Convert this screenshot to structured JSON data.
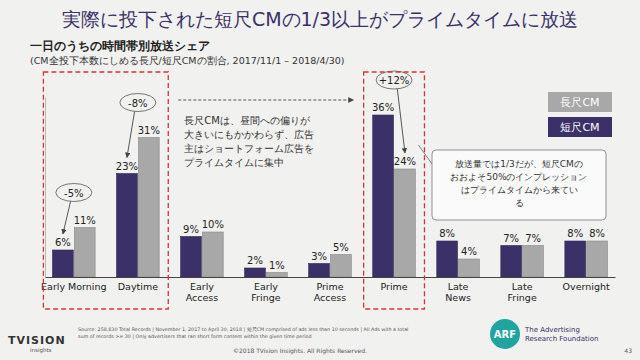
{
  "chart_data": {
    "type": "bar",
    "title": "実際に投下された短尺CMの1/3以上がプライムタイムに放送",
    "subtitle": "一日のうちの時間帯別放送シェア",
    "caption": "(CM全投下本数にしめる長尺/短尺CMの割合, 2017/11/1 – 2018/4/30)",
    "categories": [
      "Early Morning",
      "Daytime",
      "Early Access",
      "Early Fringe",
      "Prime Access",
      "Prime",
      "Late News",
      "Late Fringe",
      "Overnight"
    ],
    "series": [
      {
        "name": "短尺CM",
        "color": "#3b3168",
        "values": [
          6,
          23,
          9,
          2,
          3,
          36,
          8,
          7,
          8
        ],
        "value_labels": [
          "6%",
          "23%",
          "9%",
          "2%",
          "3%",
          "36%",
          "8%",
          "7%",
          "8%"
        ]
      },
      {
        "name": "長尺CM",
        "color": "#a8a8a8",
        "values": [
          11,
          31,
          10,
          1,
          5,
          24,
          4,
          7,
          8
        ],
        "value_labels": [
          "11%",
          "31%",
          "10%",
          "1%",
          "5%",
          "24%",
          "4%",
          "7%",
          "8%"
        ]
      }
    ],
    "ylim": [
      0,
      40
    ],
    "data_labels": true,
    "tick_labels": "x",
    "grid": false,
    "legend": "right",
    "difference_labels": [
      "-5%",
      "-8%",
      null,
      null,
      null,
      "+12%",
      null,
      null,
      null
    ],
    "annotations": [
      {
        "lines": [
          "長尺CMは、昼間への偏りが",
          "大きいにもかかわらず、広告",
          "主はショートフォーム広告を",
          "プライムタイムに集中"
        ]
      },
      {
        "lines": [
          "放送量では1/3だが、短尺CMの",
          "おおよそ50%のインプレッション",
          "はプライムタイムから来てい",
          "る"
        ]
      }
    ]
  },
  "footer": {
    "source": [
      "Source: 258,830 Total Records | November 1, 2017 to April 30, 2018 | 短尺CM comprised of ads less than 10 seconds | All Ads with a total",
      "sum of records >= 30 | Only advertisers that ran short form content within the given time period"
    ],
    "copyright": "©2018 TVision Insights. All Rights Reserved.",
    "page": 43,
    "left_logo": [
      "TVISION",
      "insights"
    ],
    "right_logo": [
      "ARF",
      "The Advertising",
      "Research Foundation"
    ]
  }
}
